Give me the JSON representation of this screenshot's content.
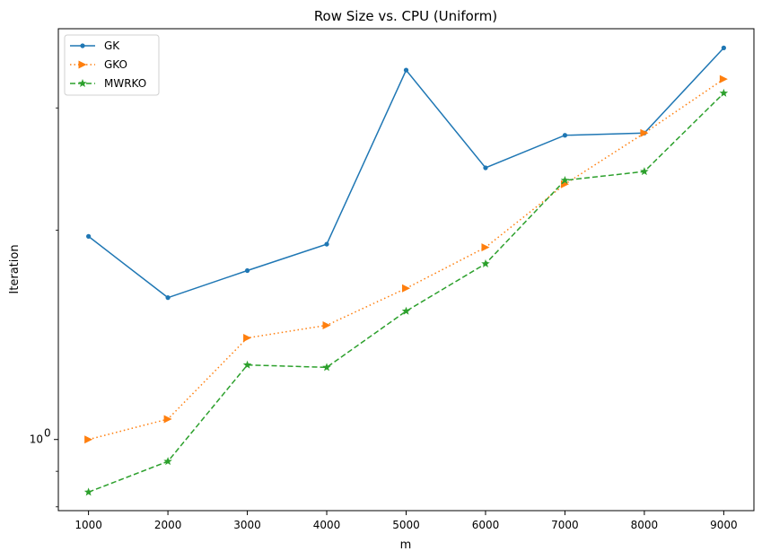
{
  "chart_data": {
    "type": "line",
    "title": "Row Size vs. CPU (Uniform)",
    "xlabel": "m",
    "ylabel": "Iteration",
    "yscale": "log",
    "xlim": [
      620,
      9380
    ],
    "ylim": [
      0.79,
      3.9
    ],
    "x": [
      1000,
      2000,
      3000,
      4000,
      5000,
      6000,
      7000,
      8000,
      9000
    ],
    "x_ticks": [
      "1000",
      "2000",
      "3000",
      "4000",
      "5000",
      "6000",
      "7000",
      "8000",
      "9000"
    ],
    "y_major_ticks": [
      {
        "value": 1,
        "label": "10",
        "exp": "0"
      }
    ],
    "y_minor_ticks": [
      0.8,
      0.9,
      2,
      3
    ],
    "legend_position": "upper-left",
    "grid": false,
    "series": [
      {
        "name": "GK",
        "color": "#1f77b4",
        "dash": "",
        "marker": "dot",
        "values": [
          1.96,
          1.6,
          1.75,
          1.91,
          3.4,
          2.46,
          2.74,
          2.76,
          3.66
        ]
      },
      {
        "name": "GKO",
        "color": "#ff7f0e",
        "dash": "1.5 3",
        "marker": "triangle-right",
        "values": [
          1.0,
          1.07,
          1.4,
          1.46,
          1.65,
          1.89,
          2.33,
          2.76,
          3.3
        ]
      },
      {
        "name": "MWRKO",
        "color": "#2ca02c",
        "dash": "6 3",
        "marker": "star",
        "values": [
          0.84,
          0.93,
          1.28,
          1.27,
          1.53,
          1.79,
          2.36,
          2.43,
          3.15
        ]
      }
    ]
  }
}
